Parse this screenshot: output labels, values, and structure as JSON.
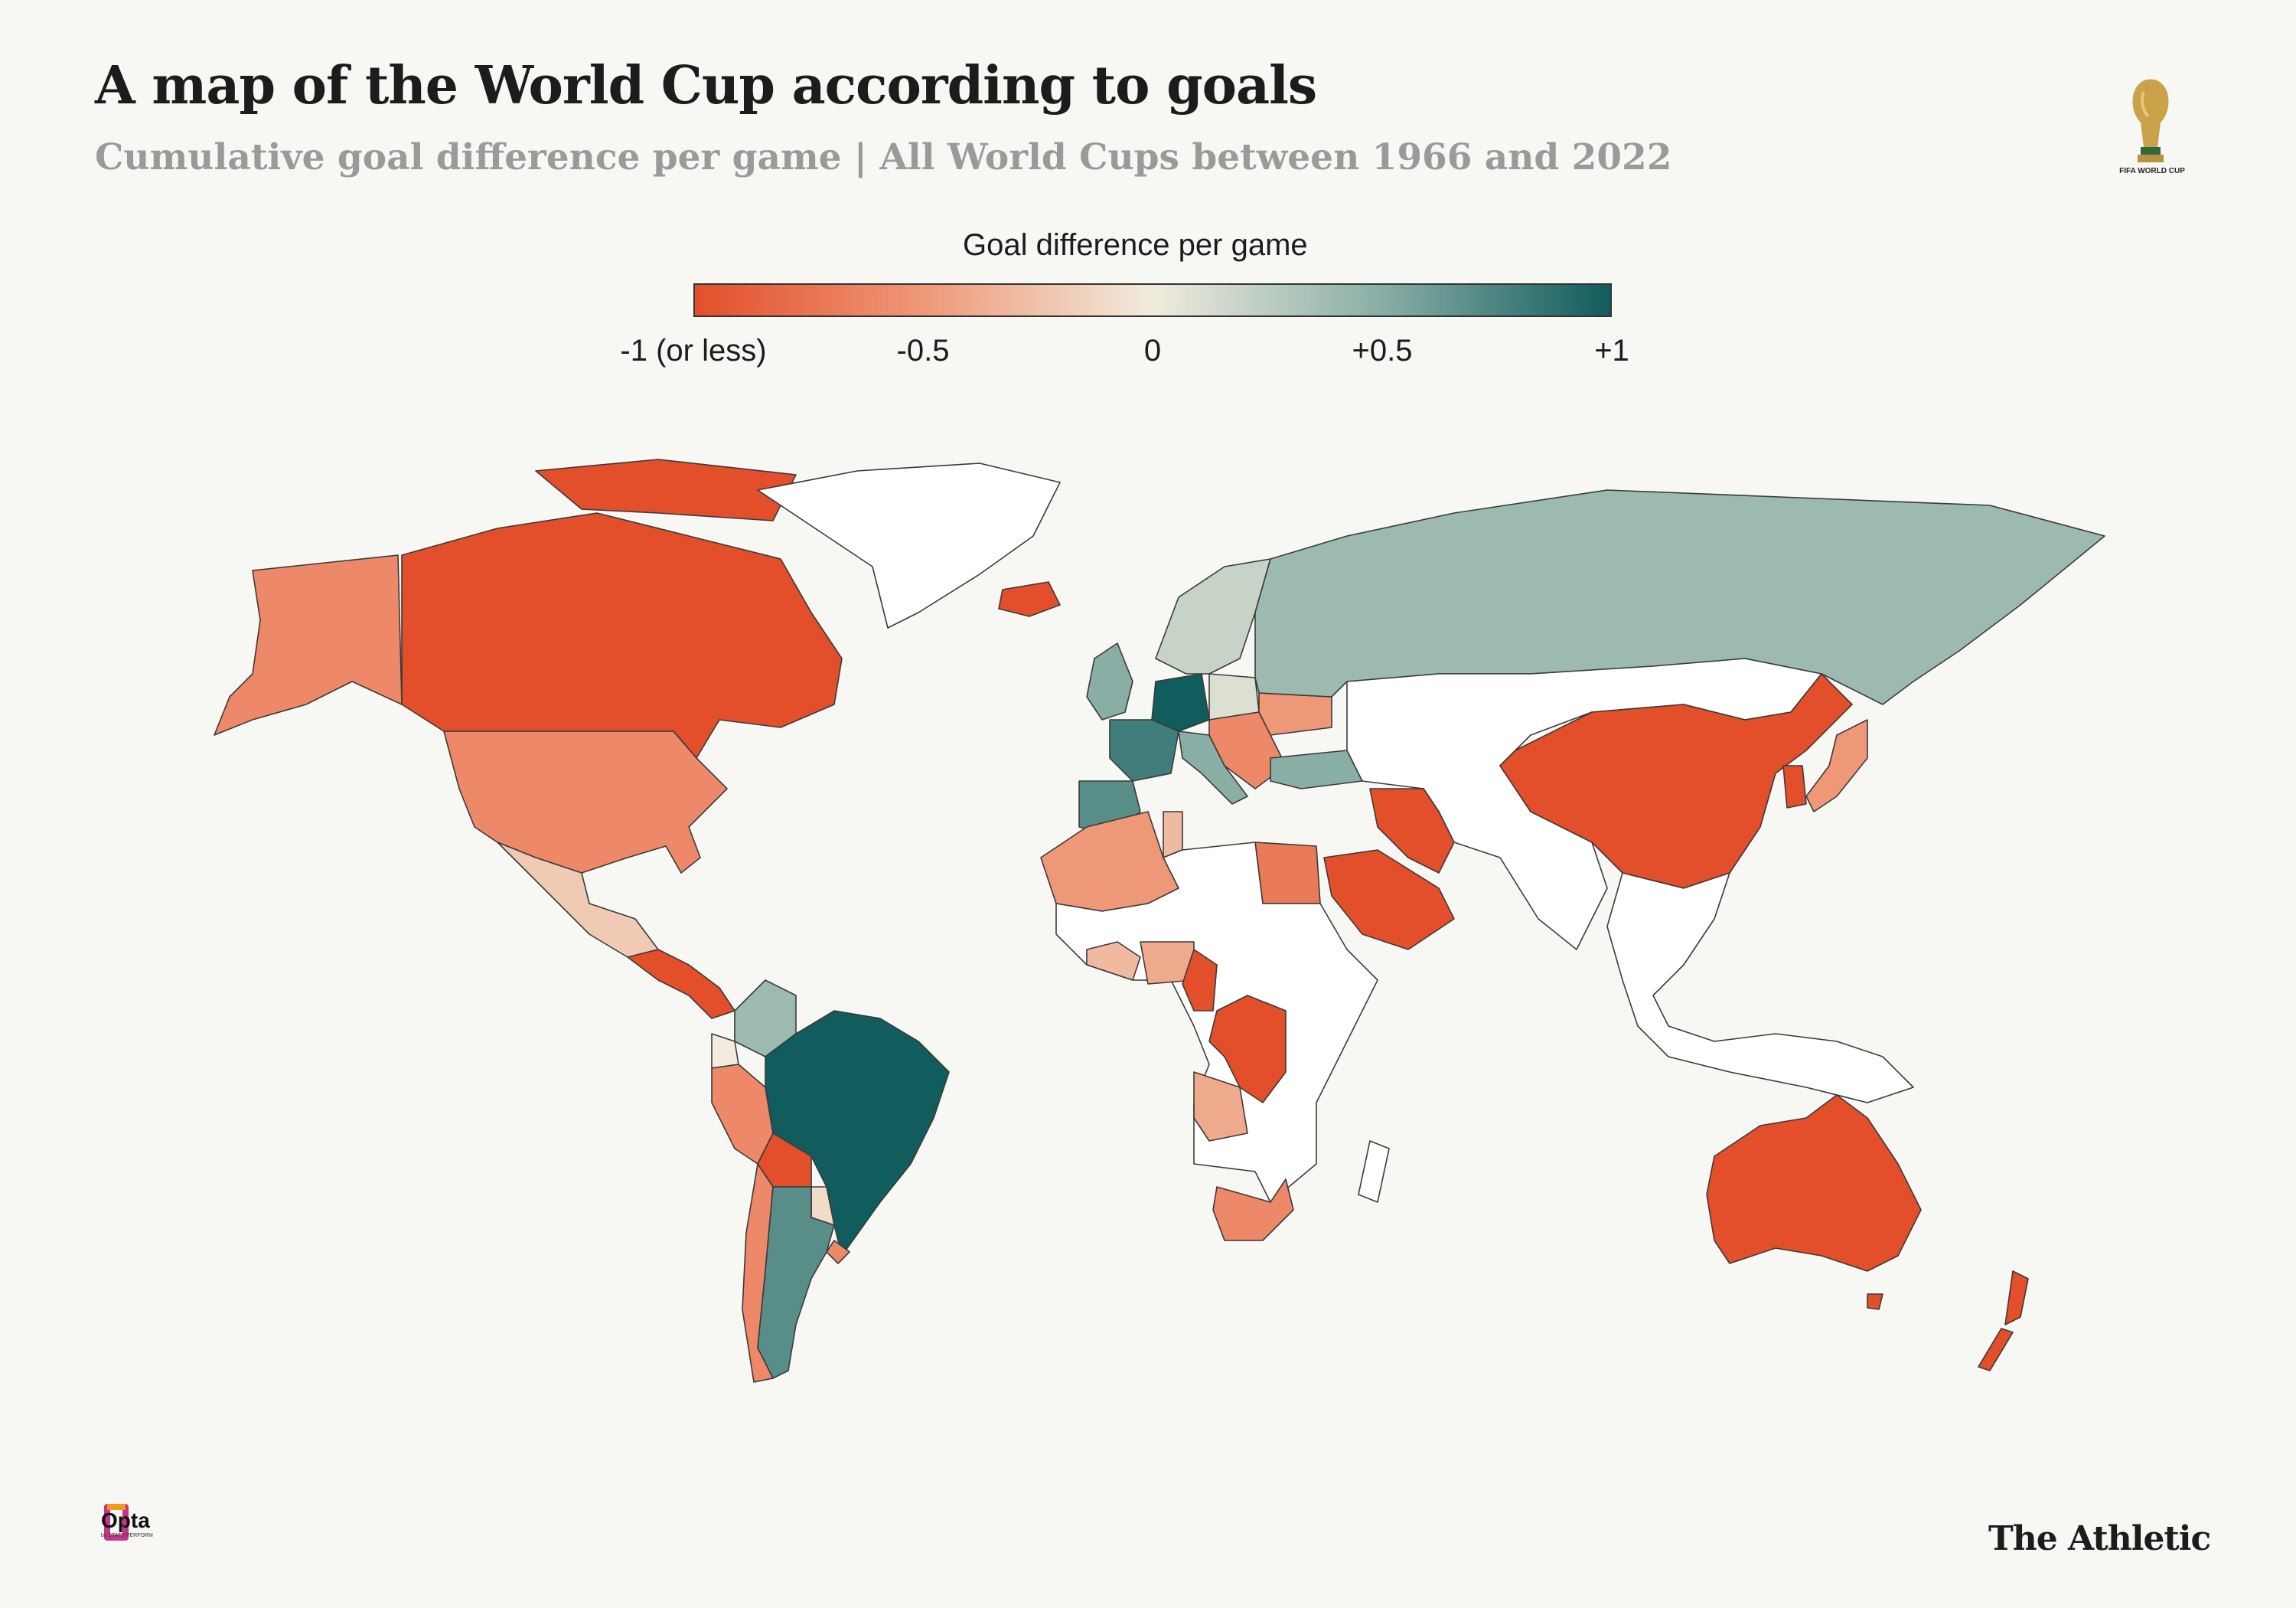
{
  "header": {
    "title": "A map of the World Cup according to goals",
    "subtitle": "Cumulative goal difference per game | All World Cups between 1966 and 2022"
  },
  "legend": {
    "title": "Goal difference per game",
    "ticks": [
      {
        "label": "-1 (or less)",
        "value": -1
      },
      {
        "label": "-0.5",
        "value": -0.5
      },
      {
        "label": "0",
        "value": 0
      },
      {
        "label": "+0.5",
        "value": 0.5
      },
      {
        "label": "+1",
        "value": 1
      }
    ],
    "colors": {
      "min": "#e34f2b",
      "low": "#ef9878",
      "mid": "#f1ecdd",
      "high": "#88aea6",
      "max": "#115c5c",
      "no_data": "#ffffff"
    }
  },
  "logos": {
    "world_cup": "FIFA WORLD CUP",
    "opta": "Opta",
    "opta_sub": "by STATS PERFORM",
    "publisher": "The Athletic"
  },
  "map_data": {
    "type": "choropleth",
    "metric": "goal difference per game",
    "regions": [
      {
        "id": "canada",
        "value": -1.0
      },
      {
        "id": "alaska",
        "value": -0.6
      },
      {
        "id": "usa",
        "value": -0.6
      },
      {
        "id": "mexico",
        "value": -0.2
      },
      {
        "id": "greenland",
        "value": null
      },
      {
        "id": "central-america",
        "value": -1.0
      },
      {
        "id": "colombia",
        "value": 0.4
      },
      {
        "id": "ecuador",
        "value": 0.0
      },
      {
        "id": "peru",
        "value": -0.6
      },
      {
        "id": "brazil",
        "value": 1.0
      },
      {
        "id": "bolivia",
        "value": -1.0
      },
      {
        "id": "paraguay",
        "value": -0.1
      },
      {
        "id": "uruguay",
        "value": -0.6
      },
      {
        "id": "chile",
        "value": -0.6
      },
      {
        "id": "argentina",
        "value": 0.7
      },
      {
        "id": "iceland",
        "value": -1.0
      },
      {
        "id": "uk",
        "value": 0.5
      },
      {
        "id": "scandinavia",
        "value": 0.2
      },
      {
        "id": "germany",
        "value": 1.0
      },
      {
        "id": "france",
        "value": 0.8
      },
      {
        "id": "iberia",
        "value": 0.7
      },
      {
        "id": "italy",
        "value": 0.5
      },
      {
        "id": "poland",
        "value": 0.1
      },
      {
        "id": "balkans",
        "value": -0.6
      },
      {
        "id": "ukraine",
        "value": -0.5
      },
      {
        "id": "turkey",
        "value": 0.5
      },
      {
        "id": "russia",
        "value": 0.4
      },
      {
        "id": "north-africa-west",
        "value": -0.5
      },
      {
        "id": "tunisia",
        "value": -0.3
      },
      {
        "id": "egypt",
        "value": -0.7
      },
      {
        "id": "west-africa",
        "value": -0.3
      },
      {
        "id": "nigeria",
        "value": -0.4
      },
      {
        "id": "cameroon",
        "value": -1.0
      },
      {
        "id": "dr-congo",
        "value": -1.0
      },
      {
        "id": "angola",
        "value": -0.4
      },
      {
        "id": "south-africa",
        "value": -0.6
      },
      {
        "id": "saudi-arabia",
        "value": -1.0
      },
      {
        "id": "iran",
        "value": -1.0
      },
      {
        "id": "china",
        "value": -1.0
      },
      {
        "id": "korea",
        "value": -1.0
      },
      {
        "id": "japan",
        "value": -0.5
      },
      {
        "id": "australia",
        "value": -1.0
      },
      {
        "id": "new-zealand",
        "value": -1.0
      },
      {
        "id": "africa-other",
        "value": null
      },
      {
        "id": "asia-other",
        "value": null
      },
      {
        "id": "southeast-asia",
        "value": null
      }
    ]
  }
}
